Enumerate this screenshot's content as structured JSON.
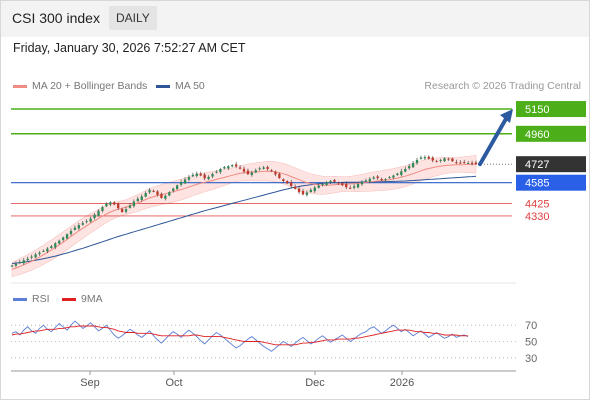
{
  "header": {
    "title": "CSI 300 index",
    "period": "DAILY"
  },
  "datetime": "Friday, January 30, 2026 7:52:27 AM CET",
  "legend": {
    "bb_label": "MA 20 + Bollinger Bands",
    "bb_color": "#f28b82",
    "ma50_label": "MA 50",
    "ma50_color": "#2e5597"
  },
  "credit": "Research © 2026 Trading Central",
  "rsi_legend": {
    "rsi_label": "RSI",
    "rsi_color": "#5b7fd6",
    "ma_label": "9MA",
    "ma_color": "#e02020"
  },
  "chart_data": [
    {
      "type": "candlestick",
      "x_labels": [
        "Sep",
        "Oct",
        "Dec",
        "2026"
      ],
      "ylim": [
        3900,
        5250
      ],
      "last_price": 4727,
      "target_arrow": {
        "from": 4727,
        "to": 5150
      },
      "levels": [
        {
          "value": 5150,
          "label": "5150",
          "kind": "resistance"
        },
        {
          "value": 4960,
          "label": "4960",
          "kind": "resistance"
        },
        {
          "value": 4727,
          "label": "4727",
          "kind": "last"
        },
        {
          "value": 4585,
          "label": "4585",
          "kind": "pivot"
        },
        {
          "value": 4425,
          "label": "4425",
          "kind": "support"
        },
        {
          "value": 4330,
          "label": "4330",
          "kind": "support"
        }
      ],
      "series": [
        {
          "name": "Close",
          "values": [
            3950,
            3962,
            3975,
            3990,
            4002,
            4018,
            4035,
            4048,
            4062,
            4080,
            4098,
            4120,
            4140,
            4165,
            4190,
            4215,
            4240,
            4260,
            4275,
            4290,
            4310,
            4340,
            4370,
            4398,
            4425,
            4435,
            4418,
            4390,
            4360,
            4382,
            4410,
            4440,
            4462,
            4480,
            4505,
            4530,
            4518,
            4492,
            4468,
            4485,
            4512,
            4540,
            4565,
            4590,
            4610,
            4628,
            4645,
            4655,
            4640,
            4618,
            4630,
            4652,
            4670,
            4690,
            4705,
            4712,
            4720,
            4710,
            4692,
            4670,
            4650,
            4662,
            4680,
            4695,
            4702,
            4690,
            4672,
            4648,
            4620,
            4598,
            4580,
            4560,
            4538,
            4512,
            4495,
            4510,
            4530,
            4548,
            4562,
            4575,
            4588,
            4598,
            4592,
            4580,
            4565,
            4550,
            4542,
            4558,
            4575,
            4590,
            4602,
            4615,
            4625,
            4620,
            4605,
            4612,
            4628,
            4640,
            4655,
            4672,
            4690,
            4712,
            4735,
            4760,
            4778,
            4782,
            4768,
            4755,
            4748,
            4760,
            4772,
            4765,
            4750,
            4740,
            4735,
            4742,
            4736,
            4730,
            4727
          ]
        },
        {
          "name": "MA 20",
          "values": [
            3920,
            3930,
            3942,
            3955,
            3968,
            3982,
            3998,
            4015,
            4032,
            4050,
            4068,
            4088,
            4108,
            4128,
            4150,
            4172,
            4194,
            4215,
            4235,
            4255,
            4275,
            4292,
            4310,
            4328,
            4345,
            4360,
            4372,
            4382,
            4390,
            4398,
            4408,
            4418,
            4430,
            4442,
            4455,
            4468,
            4478,
            4486,
            4494,
            4500,
            4508,
            4516,
            4524,
            4532,
            4542,
            4552,
            4562,
            4572,
            4580,
            4588,
            4595,
            4602,
            4610,
            4618,
            4626,
            4634,
            4642,
            4650,
            4656,
            4660,
            4664,
            4666,
            4668,
            4670,
            4672,
            4674,
            4672,
            4668,
            4662,
            4654,
            4644,
            4632,
            4620,
            4608,
            4596,
            4586,
            4578,
            4572,
            4568,
            4565,
            4565,
            4567,
            4570,
            4572,
            4574,
            4575,
            4576,
            4578,
            4580,
            4583,
            4587,
            4591,
            4595,
            4598,
            4601,
            4605,
            4609,
            4614,
            4620,
            4627,
            4635,
            4644,
            4654,
            4665,
            4676,
            4686,
            4694,
            4701,
            4707,
            4712,
            4716,
            4719,
            4721,
            4722,
            4723,
            4724,
            4725,
            4726,
            4727
          ]
        },
        {
          "name": "MA 50",
          "values": [
            3965,
            3968,
            3972,
            3976,
            3980,
            3985,
            3990,
            3996,
            4002,
            4008,
            4015,
            4022,
            4030,
            4038,
            4046,
            4055,
            4064,
            4073,
            4082,
            4092,
            4102,
            4112,
            4122,
            4132,
            4142,
            4152,
            4162,
            4172,
            4181,
            4190,
            4199,
            4208,
            4217,
            4226,
            4235,
            4244,
            4253,
            4262,
            4271,
            4280,
            4289,
            4298,
            4307,
            4316,
            4325,
            4334,
            4343,
            4352,
            4361,
            4370,
            4378,
            4386,
            4394,
            4402,
            4410,
            4418,
            4426,
            4434,
            4442,
            4450,
            4458,
            4466,
            4474,
            4482,
            4490,
            4498,
            4506,
            4514,
            4522,
            4530,
            4537,
            4544,
            4550,
            4556,
            4561,
            4566,
            4570,
            4574,
            4577,
            4580,
            4582,
            4584,
            4585,
            4586,
            4587,
            4588,
            4588,
            4589,
            4589,
            4590,
            4590,
            4591,
            4591,
            4592,
            4592,
            4593,
            4594,
            4595,
            4596,
            4597,
            4598,
            4600,
            4602,
            4604,
            4606,
            4608,
            4610,
            4612,
            4614,
            4616,
            4618,
            4620,
            4622,
            4624,
            4626,
            4628,
            4630,
            4632,
            4634
          ]
        }
      ]
    },
    {
      "type": "line",
      "ylim": [
        20,
        80
      ],
      "y_ticks": [
        "70",
        "50",
        "30"
      ],
      "y_tick_values": [
        70,
        50,
        30
      ],
      "series": [
        {
          "name": "RSI",
          "values": [
            60,
            62,
            58,
            64,
            68,
            63,
            60,
            66,
            70,
            65,
            62,
            67,
            72,
            68,
            64,
            70,
            75,
            71,
            66,
            69,
            73,
            68,
            63,
            66,
            70,
            64,
            58,
            54,
            57,
            61,
            65,
            62,
            58,
            55,
            59,
            63,
            57,
            52,
            48,
            53,
            58,
            62,
            59,
            55,
            60,
            64,
            60,
            56,
            51,
            47,
            52,
            57,
            61,
            58,
            54,
            50,
            46,
            42,
            45,
            49,
            53,
            56,
            52,
            48,
            44,
            41,
            38,
            42,
            46,
            50,
            47,
            44,
            48,
            52,
            55,
            51,
            47,
            50,
            54,
            57,
            53,
            49,
            52,
            55,
            58,
            54,
            50,
            53,
            57,
            60,
            62,
            66,
            68,
            64,
            60,
            63,
            67,
            70,
            66,
            62,
            65,
            61,
            57,
            60,
            63,
            59,
            55,
            58,
            61,
            57,
            54,
            56,
            59,
            55,
            57,
            58,
            56
          ]
        },
        {
          "name": "9MA",
          "values": [
            58,
            59,
            59,
            60,
            61,
            62,
            63,
            63,
            64,
            65,
            65,
            65,
            66,
            66,
            67,
            68,
            68,
            69,
            69,
            69,
            69,
            69,
            68,
            67,
            67,
            66,
            65,
            63,
            62,
            61,
            61,
            61,
            60,
            60,
            60,
            60,
            59,
            58,
            57,
            57,
            57,
            57,
            57,
            57,
            57,
            57,
            58,
            58,
            57,
            56,
            56,
            56,
            56,
            56,
            55,
            54,
            53,
            52,
            51,
            50,
            50,
            50,
            50,
            50,
            49,
            48,
            47,
            46,
            46,
            46,
            46,
            46,
            46,
            47,
            48,
            48,
            49,
            49,
            50,
            51,
            52,
            52,
            52,
            53,
            53,
            53,
            53,
            54,
            54,
            55,
            56,
            57,
            58,
            59,
            60,
            61,
            62,
            63,
            64,
            64,
            64,
            64,
            63,
            62,
            62,
            61,
            61,
            60,
            60,
            59,
            58,
            58,
            58,
            58,
            57,
            57,
            57
          ]
        }
      ]
    }
  ]
}
